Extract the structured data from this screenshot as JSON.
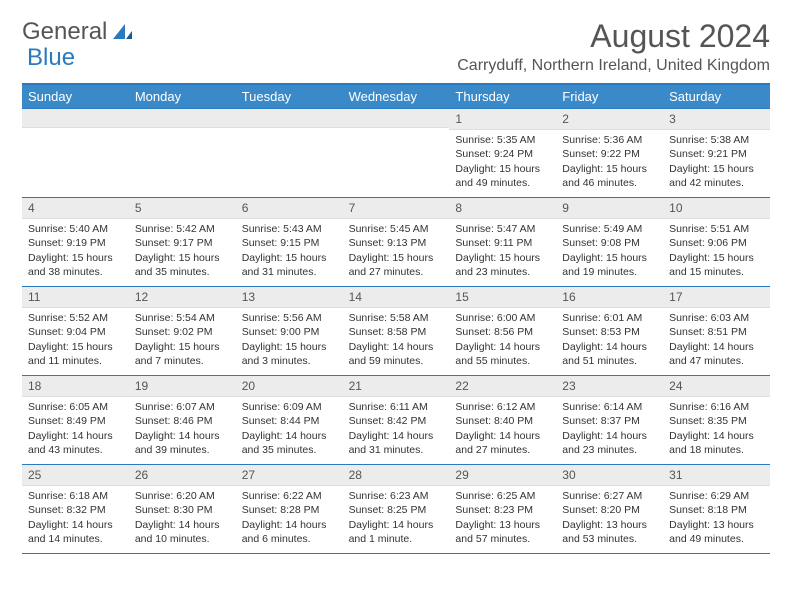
{
  "logo": {
    "text1": "General",
    "text2": "Blue"
  },
  "title": "August 2024",
  "location": "Carryduff, Northern Ireland, United Kingdom",
  "day_names": [
    "Sunday",
    "Monday",
    "Tuesday",
    "Wednesday",
    "Thursday",
    "Friday",
    "Saturday"
  ],
  "colors": {
    "header_bg": "#3a8ac9",
    "border": "#2a7abf",
    "date_bg": "#ececec",
    "text": "#333333",
    "logo_gray": "#555555",
    "logo_blue": "#2a7abf"
  },
  "weeks": [
    [
      {
        "empty": true
      },
      {
        "empty": true
      },
      {
        "empty": true
      },
      {
        "empty": true
      },
      {
        "date": "1",
        "sunrise": "Sunrise: 5:35 AM",
        "sunset": "Sunset: 9:24 PM",
        "daylight": "Daylight: 15 hours and 49 minutes."
      },
      {
        "date": "2",
        "sunrise": "Sunrise: 5:36 AM",
        "sunset": "Sunset: 9:22 PM",
        "daylight": "Daylight: 15 hours and 46 minutes."
      },
      {
        "date": "3",
        "sunrise": "Sunrise: 5:38 AM",
        "sunset": "Sunset: 9:21 PM",
        "daylight": "Daylight: 15 hours and 42 minutes."
      }
    ],
    [
      {
        "date": "4",
        "sunrise": "Sunrise: 5:40 AM",
        "sunset": "Sunset: 9:19 PM",
        "daylight": "Daylight: 15 hours and 38 minutes."
      },
      {
        "date": "5",
        "sunrise": "Sunrise: 5:42 AM",
        "sunset": "Sunset: 9:17 PM",
        "daylight": "Daylight: 15 hours and 35 minutes."
      },
      {
        "date": "6",
        "sunrise": "Sunrise: 5:43 AM",
        "sunset": "Sunset: 9:15 PM",
        "daylight": "Daylight: 15 hours and 31 minutes."
      },
      {
        "date": "7",
        "sunrise": "Sunrise: 5:45 AM",
        "sunset": "Sunset: 9:13 PM",
        "daylight": "Daylight: 15 hours and 27 minutes."
      },
      {
        "date": "8",
        "sunrise": "Sunrise: 5:47 AM",
        "sunset": "Sunset: 9:11 PM",
        "daylight": "Daylight: 15 hours and 23 minutes."
      },
      {
        "date": "9",
        "sunrise": "Sunrise: 5:49 AM",
        "sunset": "Sunset: 9:08 PM",
        "daylight": "Daylight: 15 hours and 19 minutes."
      },
      {
        "date": "10",
        "sunrise": "Sunrise: 5:51 AM",
        "sunset": "Sunset: 9:06 PM",
        "daylight": "Daylight: 15 hours and 15 minutes."
      }
    ],
    [
      {
        "date": "11",
        "sunrise": "Sunrise: 5:52 AM",
        "sunset": "Sunset: 9:04 PM",
        "daylight": "Daylight: 15 hours and 11 minutes."
      },
      {
        "date": "12",
        "sunrise": "Sunrise: 5:54 AM",
        "sunset": "Sunset: 9:02 PM",
        "daylight": "Daylight: 15 hours and 7 minutes."
      },
      {
        "date": "13",
        "sunrise": "Sunrise: 5:56 AM",
        "sunset": "Sunset: 9:00 PM",
        "daylight": "Daylight: 15 hours and 3 minutes."
      },
      {
        "date": "14",
        "sunrise": "Sunrise: 5:58 AM",
        "sunset": "Sunset: 8:58 PM",
        "daylight": "Daylight: 14 hours and 59 minutes."
      },
      {
        "date": "15",
        "sunrise": "Sunrise: 6:00 AM",
        "sunset": "Sunset: 8:56 PM",
        "daylight": "Daylight: 14 hours and 55 minutes."
      },
      {
        "date": "16",
        "sunrise": "Sunrise: 6:01 AM",
        "sunset": "Sunset: 8:53 PM",
        "daylight": "Daylight: 14 hours and 51 minutes."
      },
      {
        "date": "17",
        "sunrise": "Sunrise: 6:03 AM",
        "sunset": "Sunset: 8:51 PM",
        "daylight": "Daylight: 14 hours and 47 minutes."
      }
    ],
    [
      {
        "date": "18",
        "sunrise": "Sunrise: 6:05 AM",
        "sunset": "Sunset: 8:49 PM",
        "daylight": "Daylight: 14 hours and 43 minutes."
      },
      {
        "date": "19",
        "sunrise": "Sunrise: 6:07 AM",
        "sunset": "Sunset: 8:46 PM",
        "daylight": "Daylight: 14 hours and 39 minutes."
      },
      {
        "date": "20",
        "sunrise": "Sunrise: 6:09 AM",
        "sunset": "Sunset: 8:44 PM",
        "daylight": "Daylight: 14 hours and 35 minutes."
      },
      {
        "date": "21",
        "sunrise": "Sunrise: 6:11 AM",
        "sunset": "Sunset: 8:42 PM",
        "daylight": "Daylight: 14 hours and 31 minutes."
      },
      {
        "date": "22",
        "sunrise": "Sunrise: 6:12 AM",
        "sunset": "Sunset: 8:40 PM",
        "daylight": "Daylight: 14 hours and 27 minutes."
      },
      {
        "date": "23",
        "sunrise": "Sunrise: 6:14 AM",
        "sunset": "Sunset: 8:37 PM",
        "daylight": "Daylight: 14 hours and 23 minutes."
      },
      {
        "date": "24",
        "sunrise": "Sunrise: 6:16 AM",
        "sunset": "Sunset: 8:35 PM",
        "daylight": "Daylight: 14 hours and 18 minutes."
      }
    ],
    [
      {
        "date": "25",
        "sunrise": "Sunrise: 6:18 AM",
        "sunset": "Sunset: 8:32 PM",
        "daylight": "Daylight: 14 hours and 14 minutes."
      },
      {
        "date": "26",
        "sunrise": "Sunrise: 6:20 AM",
        "sunset": "Sunset: 8:30 PM",
        "daylight": "Daylight: 14 hours and 10 minutes."
      },
      {
        "date": "27",
        "sunrise": "Sunrise: 6:22 AM",
        "sunset": "Sunset: 8:28 PM",
        "daylight": "Daylight: 14 hours and 6 minutes."
      },
      {
        "date": "28",
        "sunrise": "Sunrise: 6:23 AM",
        "sunset": "Sunset: 8:25 PM",
        "daylight": "Daylight: 14 hours and 1 minute."
      },
      {
        "date": "29",
        "sunrise": "Sunrise: 6:25 AM",
        "sunset": "Sunset: 8:23 PM",
        "daylight": "Daylight: 13 hours and 57 minutes."
      },
      {
        "date": "30",
        "sunrise": "Sunrise: 6:27 AM",
        "sunset": "Sunset: 8:20 PM",
        "daylight": "Daylight: 13 hours and 53 minutes."
      },
      {
        "date": "31",
        "sunrise": "Sunrise: 6:29 AM",
        "sunset": "Sunset: 8:18 PM",
        "daylight": "Daylight: 13 hours and 49 minutes."
      }
    ]
  ]
}
